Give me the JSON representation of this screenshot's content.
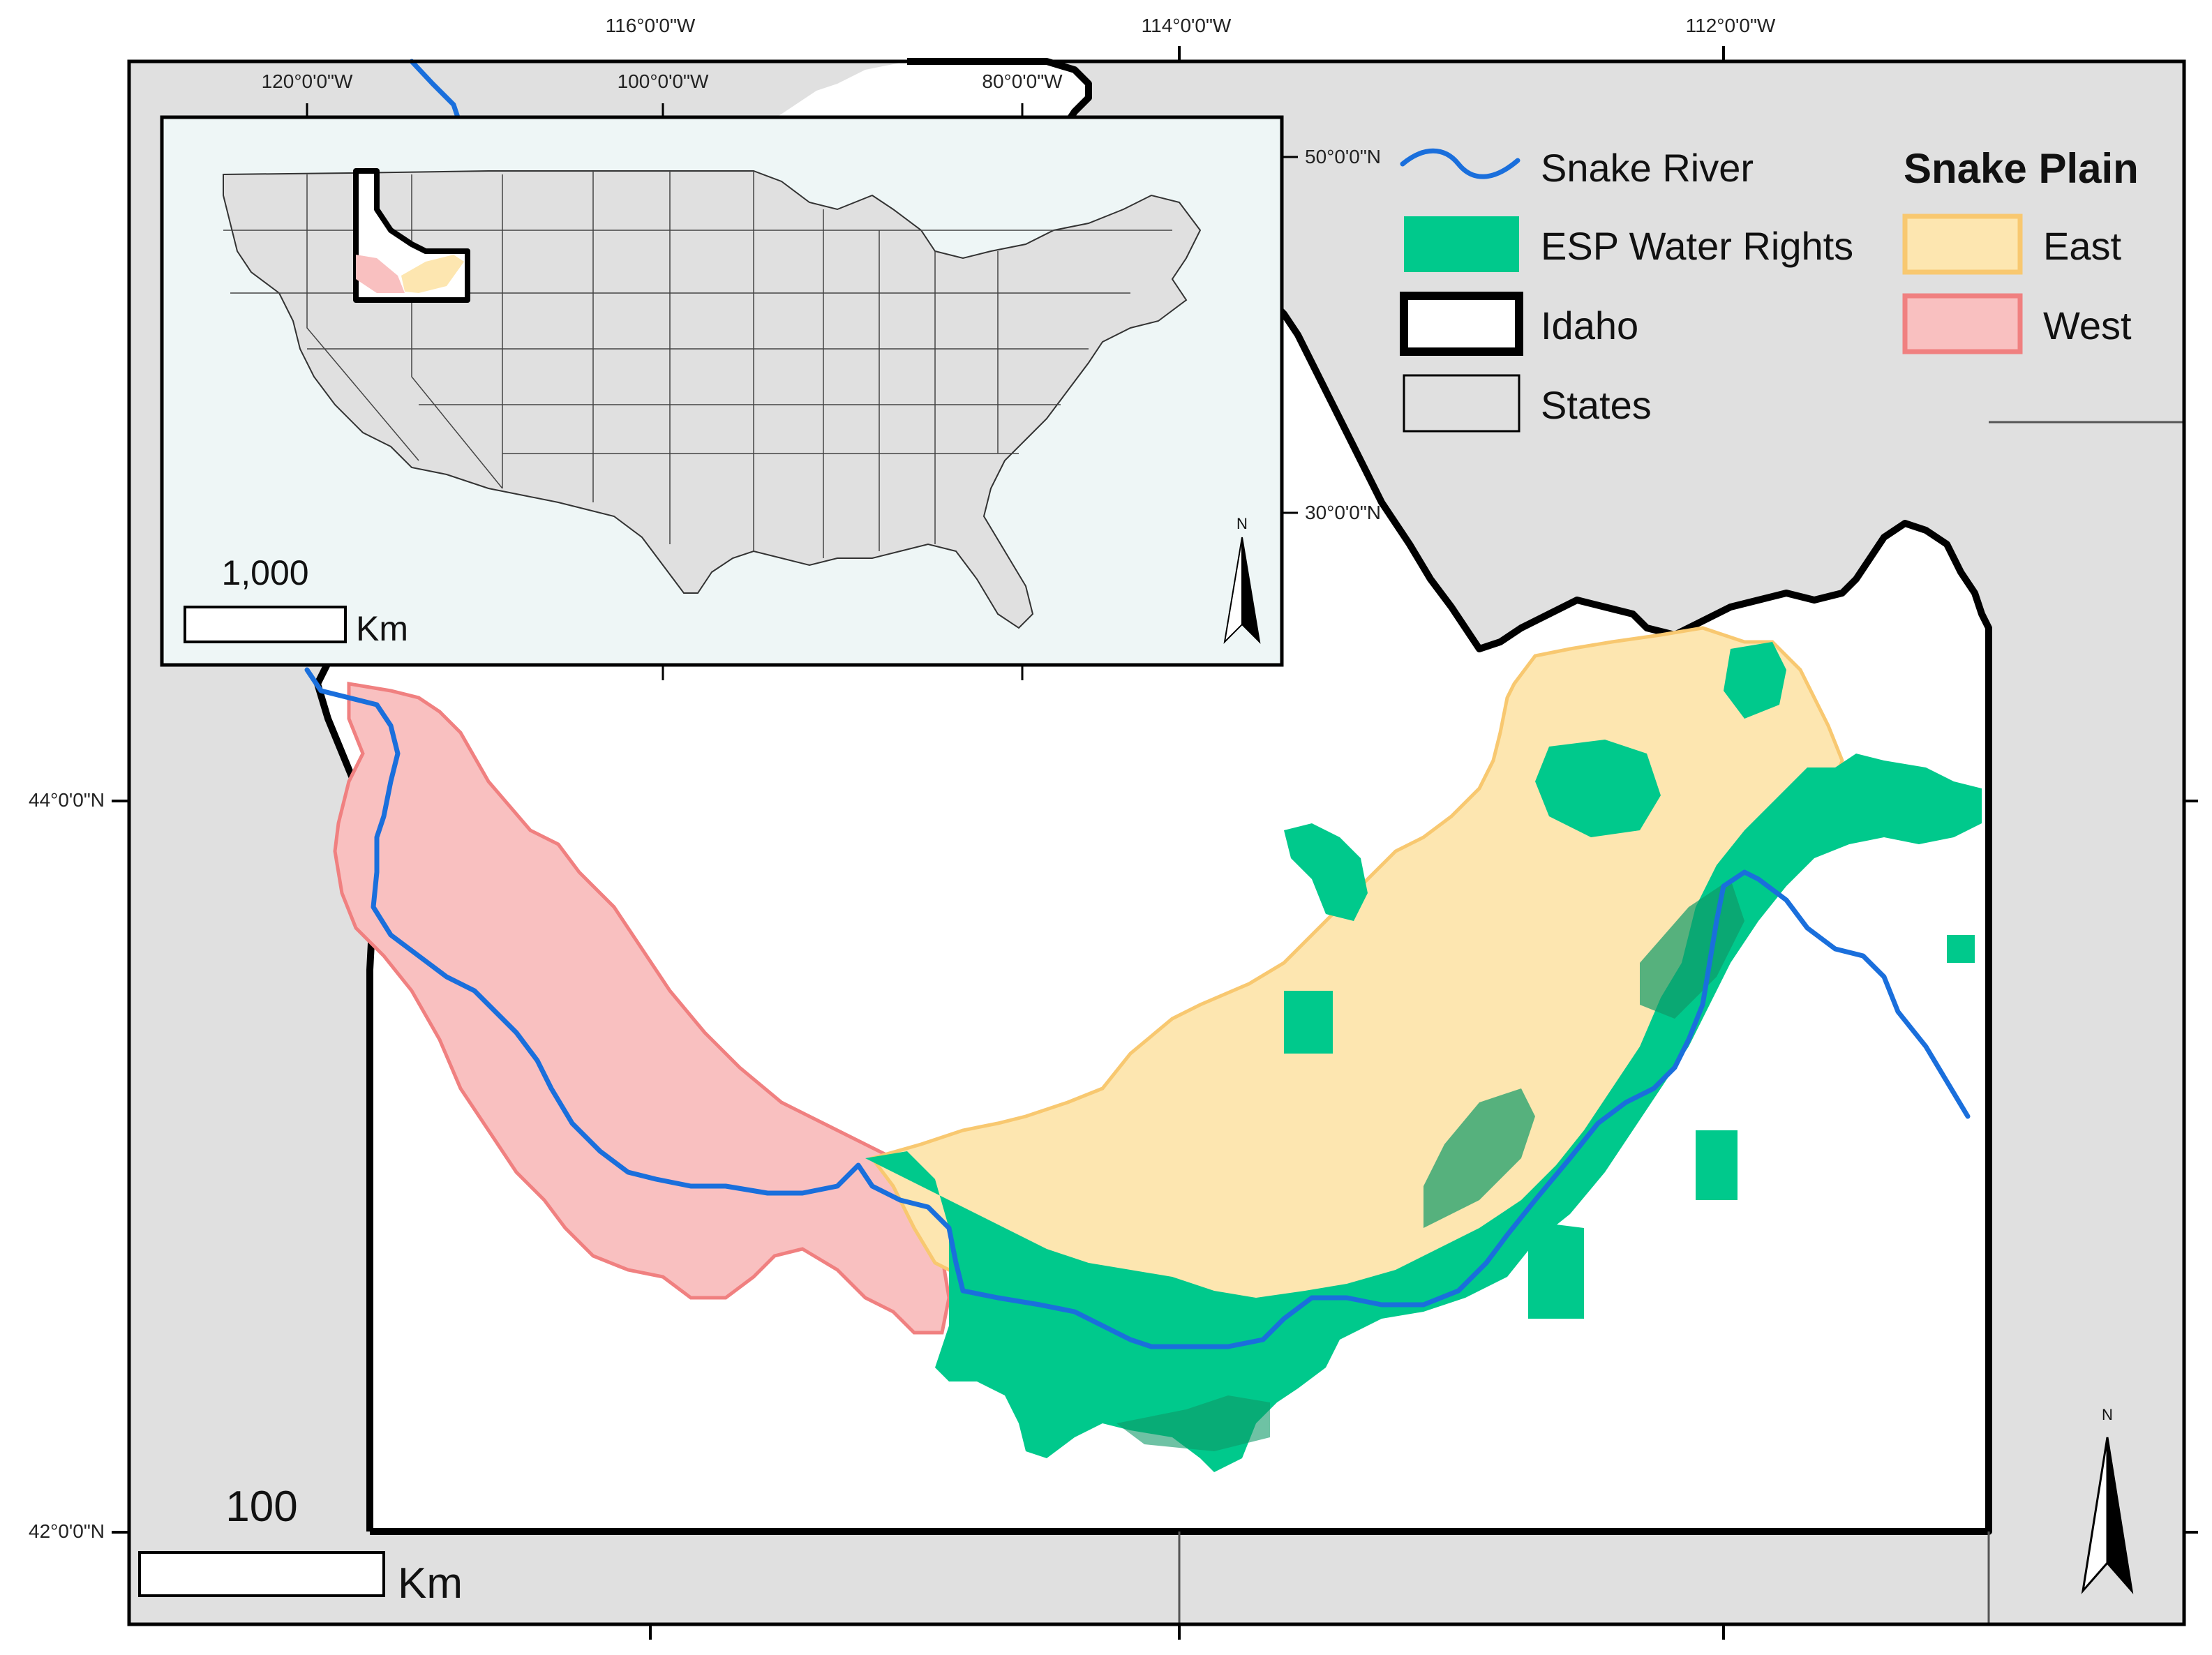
{
  "main_map": {
    "top_longitude_labels": [
      "116°0'0\"W",
      "114°0'0\"W",
      "112°0'0\"W"
    ],
    "left_latitude_labels": [
      "44°0'0\"N",
      "42°0'0\"N"
    ],
    "scale_bar": {
      "value": "100",
      "unit": "Km"
    },
    "north_arrow": {
      "letter": "N"
    }
  },
  "inset_map": {
    "longitude_labels": [
      "120°0'0\"W",
      "100°0'0\"W",
      "80°0'0\"W"
    ],
    "latitude_labels": [
      "50°0'0\"N",
      "30°0'0\"N"
    ],
    "scale_bar": {
      "value": "1,000",
      "unit": "Km"
    },
    "north_arrow": {
      "letter": "N"
    }
  },
  "legend": {
    "items": [
      {
        "label": "Snake River",
        "symbol": "line",
        "color": "#1a6fdc"
      },
      {
        "label": "ESP Water Rights",
        "symbol": "fill",
        "color": "#00c98c"
      },
      {
        "label": "Idaho",
        "symbol": "thick-outline",
        "color": "#000000"
      },
      {
        "label": "States",
        "symbol": "outline",
        "color": "#e0e0e0"
      }
    ],
    "snake_plain": {
      "title": "Snake Plain",
      "items": [
        {
          "label": "East",
          "color": "#fde6b0",
          "border": "#f8c870"
        },
        {
          "label": "West",
          "color": "#f9c0c0",
          "border": "#f08080"
        }
      ]
    }
  },
  "colors": {
    "background_states": "#e0e0e0",
    "idaho_fill": "#ffffff",
    "river": "#1a6fdc",
    "water_rights": "#00c98c",
    "water_rights_dark": "#0e9a68",
    "east_plain": "#fde6b0",
    "west_plain": "#f9c0c0",
    "inset_ocean": "#eef6f6"
  }
}
